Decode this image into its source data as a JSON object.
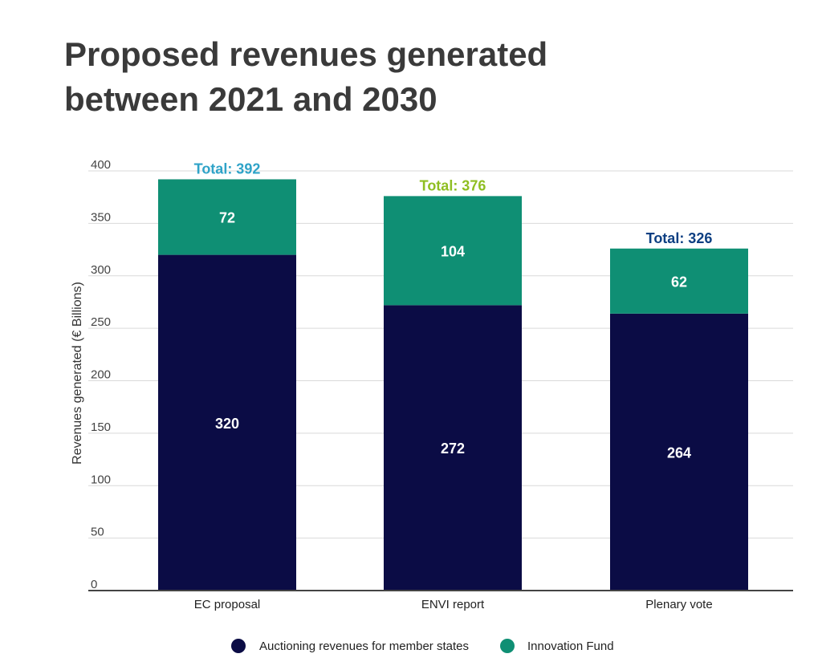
{
  "title_line1": "Proposed revenues generated",
  "title_line2": "between 2021 and 2030",
  "chart_data": {
    "type": "bar",
    "stacked": true,
    "categories": [
      "EC proposal",
      "ENVI report",
      "Plenary vote"
    ],
    "series": [
      {
        "name": "Auctioning revenues for member states",
        "values": [
          320,
          272,
          264
        ],
        "color": "#0b0c45"
      },
      {
        "name": "Innovation Fund",
        "values": [
          72,
          104,
          62
        ],
        "color": "#0f8f74"
      }
    ],
    "totals": [
      {
        "label": "Total: 392",
        "color": "#2fa3c8"
      },
      {
        "label": "Total: 376",
        "color": "#8fbe22"
      },
      {
        "label": "Total: 326",
        "color": "#0d3f82"
      }
    ],
    "ylabel": "Revenues generated (€ Billions)",
    "xlabel": "",
    "ylim": [
      0,
      400
    ],
    "yticks": [
      0,
      50,
      100,
      150,
      200,
      250,
      300,
      350,
      400
    ],
    "grid": true,
    "legend_position": "bottom"
  }
}
